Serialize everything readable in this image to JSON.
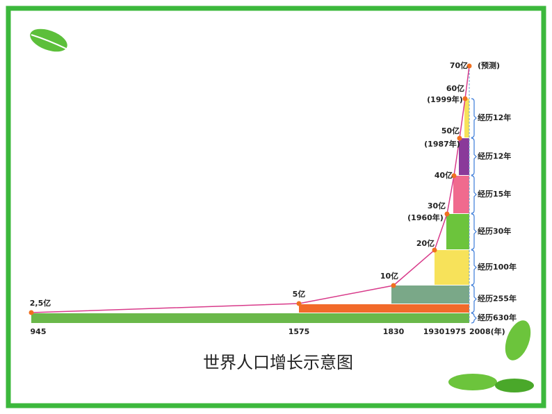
{
  "title": "世界人口增长示意图",
  "points": [
    {
      "label": "2,5亿"
    },
    {
      "label": "5亿"
    },
    {
      "label": "10亿"
    },
    {
      "label": "20亿"
    },
    {
      "label": "30亿",
      "year": "(1960年)"
    },
    {
      "label": "40亿"
    },
    {
      "label": "50亿",
      "year": "(1987年)"
    },
    {
      "label": "60亿",
      "year": "(1999年)"
    },
    {
      "label": "70亿",
      "note": "(预测)"
    }
  ],
  "years": [
    "945",
    "1575",
    "1830",
    "1930",
    "1975",
    "2008(年)"
  ],
  "spans": [
    "经历630年",
    "经历255年",
    "经历100年",
    "经历30年",
    "经历15年",
    "经历12年",
    "经历12年"
  ]
}
